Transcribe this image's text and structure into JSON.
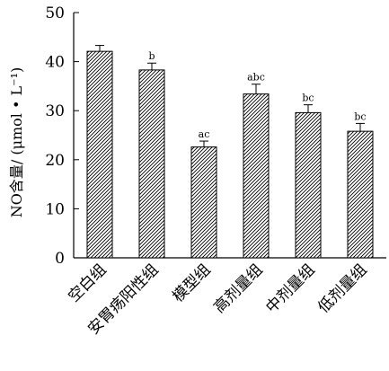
{
  "chart_data": {
    "type": "bar",
    "title": "",
    "xlabel": "",
    "ylabel": "NO含量/ (μmol • L⁻¹)",
    "ylim": [
      0,
      50
    ],
    "yticks": [
      0,
      10,
      20,
      30,
      40,
      50
    ],
    "grid": false,
    "legend": "none",
    "bar_fill": "diagonal-hatch",
    "colors": {
      "ink": "#000000",
      "background": "#ffffff"
    },
    "categories": [
      "空白组",
      "安胃疡阳性组",
      "模型组",
      "高剂量组",
      "中剂量组",
      "低剂量组"
    ],
    "values": [
      42.1,
      38.3,
      22.6,
      33.4,
      29.6,
      25.8
    ],
    "errors": [
      1.2,
      1.4,
      1.2,
      2.0,
      1.6,
      1.6
    ],
    "significance": [
      "",
      "b",
      "ac",
      "abc",
      "bc",
      "bc"
    ]
  }
}
